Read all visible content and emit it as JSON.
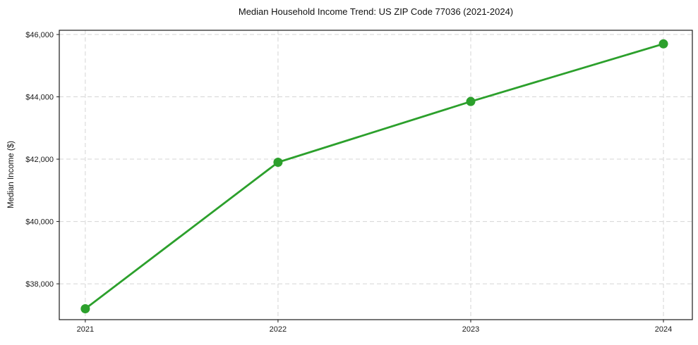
{
  "chart_data": {
    "type": "line",
    "title": "Median Household Income Trend: US ZIP Code 77036 (2021-2024)",
    "xlabel": "",
    "ylabel": "Median Income ($)",
    "x": [
      2021,
      2022,
      2023,
      2024
    ],
    "categories": [
      "2021",
      "2022",
      "2023",
      "2024"
    ],
    "series": [
      {
        "name": "Median Household Income",
        "values": [
          37200,
          41900,
          43850,
          45700
        ]
      }
    ],
    "y_ticks": [
      {
        "value": 38000,
        "label": "$38,000"
      },
      {
        "value": 40000,
        "label": "$40,000"
      },
      {
        "value": 42000,
        "label": "$42,000"
      },
      {
        "value": 44000,
        "label": "$44,000"
      },
      {
        "value": 46000,
        "label": "$46,000"
      }
    ],
    "xlim": [
      2020.865,
      2024.15
    ],
    "ylim": [
      36850,
      46136
    ],
    "grid": true,
    "grid_style": "dashed",
    "legend_position": "none",
    "marker": "circle",
    "colors": {
      "line": "#2ca02c",
      "marker": "#2ca02c",
      "grid": "#d5d5d5",
      "axis": "#1a1a1a",
      "tick_text": "#1a1a1a",
      "background": "#ffffff"
    }
  }
}
